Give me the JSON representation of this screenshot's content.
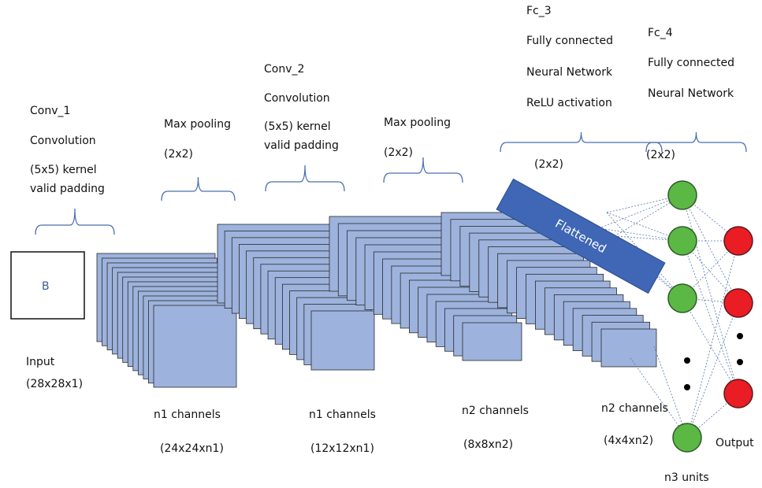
{
  "input": {
    "symbol": "B",
    "label": "Input",
    "shape": "(28x28x1)"
  },
  "layers": [
    {
      "lines": [
        "Conv_1",
        "Convolution",
        "(5x5) kernel",
        "valid padding"
      ]
    },
    {
      "lines": [
        "Max pooling",
        "(2x2)"
      ]
    },
    {
      "lines": [
        "Conv_2",
        "Convolution",
        "(5x5) kernel",
        "valid padding"
      ]
    },
    {
      "lines": [
        "Max pooling",
        "(2x2)"
      ]
    },
    {
      "lines": [
        "Fc_3",
        "Fully connected",
        "Neural Network",
        "ReLU activation"
      ],
      "size": "(2x2)"
    },
    {
      "lines": [
        "Fc_4",
        "Fully connected",
        "Neural Network"
      ],
      "size": "(2x2)"
    }
  ],
  "feature_maps": [
    {
      "channels": "n1 channels",
      "shape": "(24x24xn1)"
    },
    {
      "channels": "n1 channels",
      "shape": "(12x12xn1)"
    },
    {
      "channels": "n2 channels",
      "shape": "(8x8xn2)"
    },
    {
      "channels": "n2 channels",
      "shape": "(4x4xn2)"
    }
  ],
  "flattened": "Flattened",
  "output": "Output",
  "units": "n3 units"
}
